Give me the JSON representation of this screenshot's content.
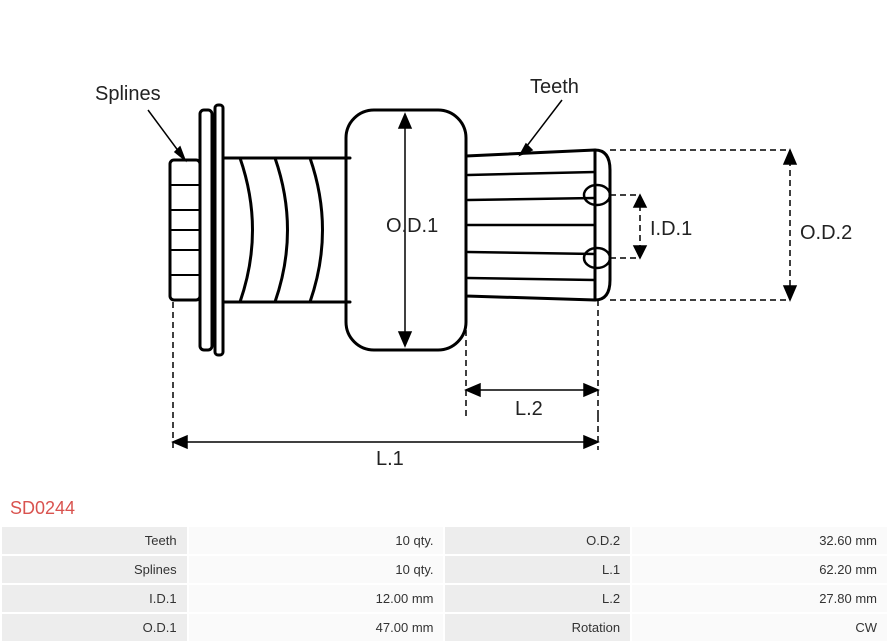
{
  "diagram": {
    "labels": {
      "splines": "Splines",
      "teeth": "Teeth",
      "od1": "O.D.1",
      "od2": "O.D.2",
      "id1": "I.D.1",
      "l1": "L.1",
      "l2": "L.2"
    },
    "stroke_color": "#000000",
    "stroke_width_main": 3,
    "stroke_width_dim": 1.5,
    "dash_pattern": "6,4",
    "background_color": "#ffffff",
    "font_size_labels": 20,
    "font_color": "#222222"
  },
  "part_number": "SD0244",
  "part_number_color": "#d9534f",
  "specs": {
    "rows": [
      {
        "key1": "Teeth",
        "val1": "10 qty.",
        "key2": "O.D.2",
        "val2": "32.60 mm"
      },
      {
        "key1": "Splines",
        "val1": "10 qty.",
        "key2": "L.1",
        "val2": "62.20 mm"
      },
      {
        "key1": "I.D.1",
        "val1": "12.00 mm",
        "key2": "L.2",
        "val2": "27.80 mm"
      },
      {
        "key1": "O.D.1",
        "val1": "47.00 mm",
        "key2": "Rotation",
        "val2": "CW"
      }
    ],
    "cell_bg_key": "#ededed",
    "cell_bg_val": "#fafafa",
    "font_size": 13,
    "text_color": "#333333"
  }
}
